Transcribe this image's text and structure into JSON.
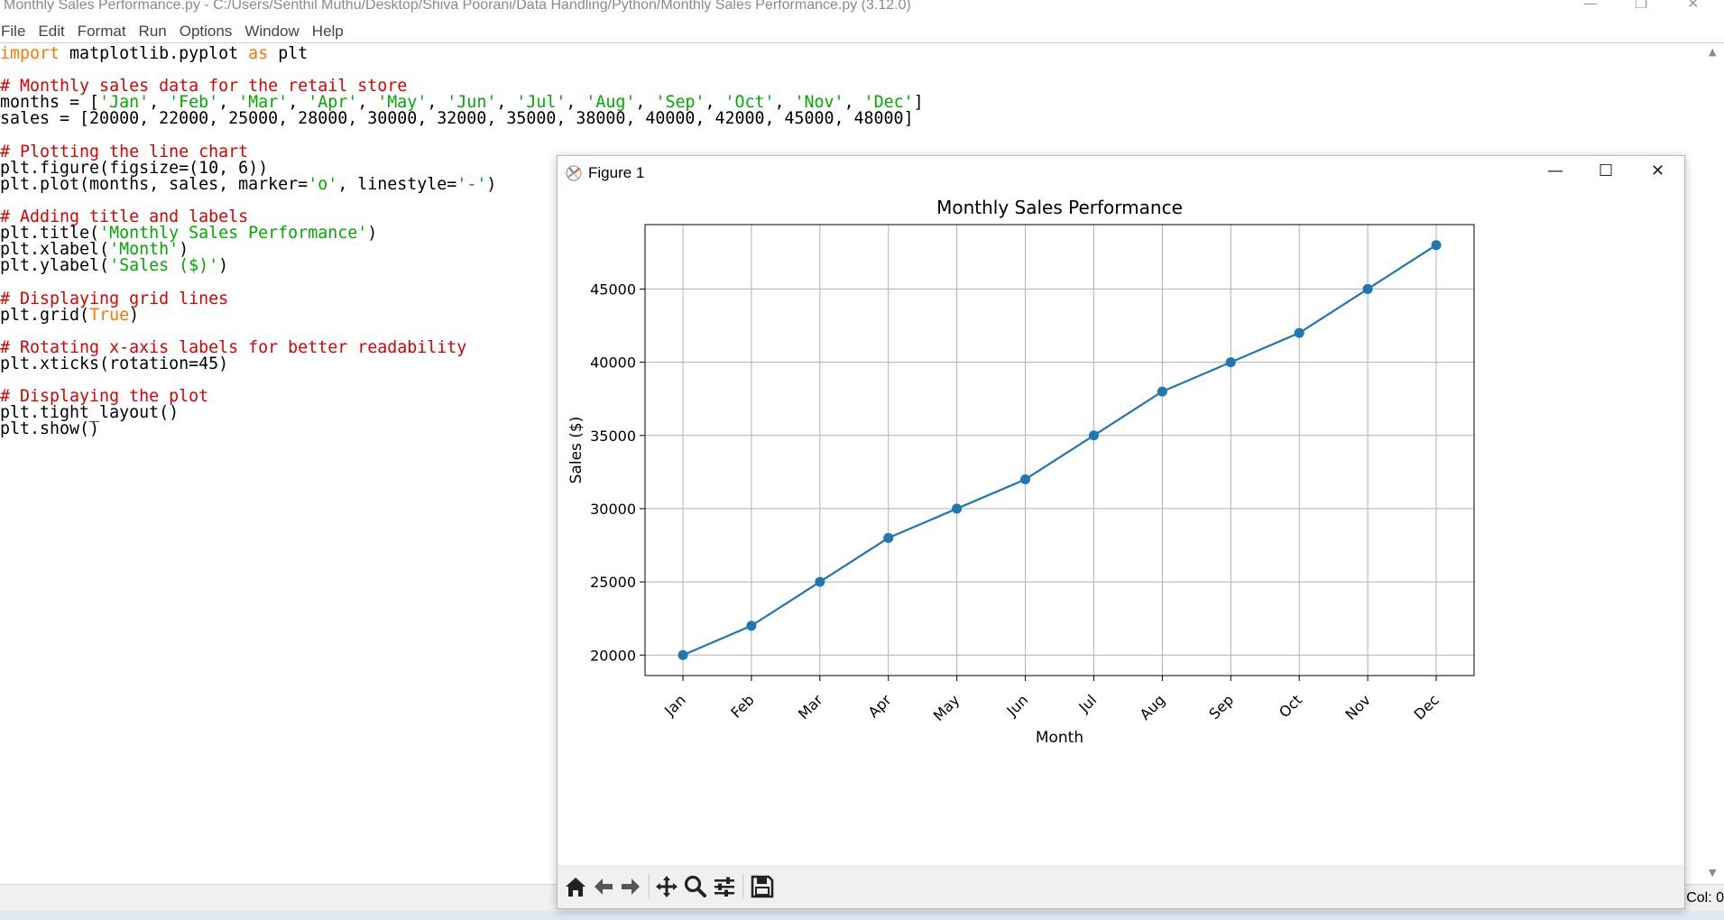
{
  "editor": {
    "title": "Monthly Sales Performance.py - C:/Users/Senthil Muthu/Desktop/Shiva Poorani/Data Handling/Python/Monthly Sales Performance.py (3.12.0)",
    "menu": [
      "File",
      "Edit",
      "Format",
      "Run",
      "Options",
      "Window",
      "Help"
    ],
    "status_col": "Col: 0",
    "code": [
      [
        {
          "t": "import",
          "c": "kw"
        },
        {
          "t": " matplotlib.pyplot ",
          "c": ""
        },
        {
          "t": "as",
          "c": "kw"
        },
        {
          "t": " plt",
          "c": ""
        }
      ],
      [],
      [
        {
          "t": "# Monthly sales data for the retail store",
          "c": "cm"
        }
      ],
      [
        {
          "t": "months = [",
          "c": ""
        },
        {
          "t": "'Jan'",
          "c": "st"
        },
        {
          "t": ", ",
          "c": ""
        },
        {
          "t": "'Feb'",
          "c": "st"
        },
        {
          "t": ", ",
          "c": ""
        },
        {
          "t": "'Mar'",
          "c": "st"
        },
        {
          "t": ", ",
          "c": ""
        },
        {
          "t": "'Apr'",
          "c": "st"
        },
        {
          "t": ", ",
          "c": ""
        },
        {
          "t": "'May'",
          "c": "st"
        },
        {
          "t": ", ",
          "c": ""
        },
        {
          "t": "'Jun'",
          "c": "st"
        },
        {
          "t": ", ",
          "c": ""
        },
        {
          "t": "'Jul'",
          "c": "st"
        },
        {
          "t": ", ",
          "c": ""
        },
        {
          "t": "'Aug'",
          "c": "st"
        },
        {
          "t": ", ",
          "c": ""
        },
        {
          "t": "'Sep'",
          "c": "st"
        },
        {
          "t": ", ",
          "c": ""
        },
        {
          "t": "'Oct'",
          "c": "st"
        },
        {
          "t": ", ",
          "c": ""
        },
        {
          "t": "'Nov'",
          "c": "st"
        },
        {
          "t": ", ",
          "c": ""
        },
        {
          "t": "'Dec'",
          "c": "st"
        },
        {
          "t": "]",
          "c": ""
        }
      ],
      [
        {
          "t": "sales = [20000, 22000, 25000, 28000, 30000, 32000, 35000, 38000, 40000, 42000, 45000, 48000]",
          "c": ""
        }
      ],
      [],
      [
        {
          "t": "# Plotting the line chart",
          "c": "cm"
        }
      ],
      [
        {
          "t": "plt.figure(figsize=(10, 6))",
          "c": ""
        }
      ],
      [
        {
          "t": "plt.plot(months, sales, marker=",
          "c": ""
        },
        {
          "t": "'o'",
          "c": "st"
        },
        {
          "t": ", linestyle=",
          "c": ""
        },
        {
          "t": "'-'",
          "c": "st"
        },
        {
          "t": ")",
          "c": ""
        }
      ],
      [],
      [
        {
          "t": "# Adding title and labels",
          "c": "cm"
        }
      ],
      [
        {
          "t": "plt.title(",
          "c": ""
        },
        {
          "t": "'Monthly Sales Performance'",
          "c": "st"
        },
        {
          "t": ")",
          "c": ""
        }
      ],
      [
        {
          "t": "plt.xlabel(",
          "c": ""
        },
        {
          "t": "'Month'",
          "c": "st"
        },
        {
          "t": ")",
          "c": ""
        }
      ],
      [
        {
          "t": "plt.ylabel(",
          "c": ""
        },
        {
          "t": "'Sales ($)'",
          "c": "st"
        },
        {
          "t": ")",
          "c": ""
        }
      ],
      [],
      [
        {
          "t": "# Displaying grid lines",
          "c": "cm"
        }
      ],
      [
        {
          "t": "plt.grid(",
          "c": ""
        },
        {
          "t": "True",
          "c": "kw"
        },
        {
          "t": ")",
          "c": ""
        }
      ],
      [],
      [
        {
          "t": "# Rotating x-axis labels for better readability",
          "c": "cm"
        }
      ],
      [
        {
          "t": "plt.xticks(rotation=45)",
          "c": ""
        }
      ],
      [],
      [
        {
          "t": "# Displaying the plot",
          "c": "cm"
        }
      ],
      [
        {
          "t": "plt.tight_layout()",
          "c": ""
        }
      ],
      [
        {
          "t": "plt.show()",
          "c": ""
        }
      ]
    ]
  },
  "figure": {
    "title": "Figure 1",
    "toolbar": [
      "home-icon",
      "back-arrow-icon",
      "forward-arrow-icon",
      "pan-move-icon",
      "zoom-magnifier-icon",
      "configure-subplots-icon",
      "save-floppy-icon"
    ]
  },
  "chart_data": {
    "type": "line",
    "title": "Monthly Sales Performance",
    "xlabel": "Month",
    "ylabel": "Sales ($)",
    "categories": [
      "Jan",
      "Feb",
      "Mar",
      "Apr",
      "May",
      "Jun",
      "Jul",
      "Aug",
      "Sep",
      "Oct",
      "Nov",
      "Dec"
    ],
    "values": [
      20000,
      22000,
      25000,
      28000,
      30000,
      32000,
      35000,
      38000,
      40000,
      42000,
      45000,
      48000
    ],
    "yticks": [
      20000,
      25000,
      30000,
      35000,
      40000,
      45000
    ],
    "ylim": [
      18600,
      49400
    ],
    "grid": true,
    "xtick_rotation": 45,
    "marker": "o",
    "color": "#1f77b4"
  }
}
